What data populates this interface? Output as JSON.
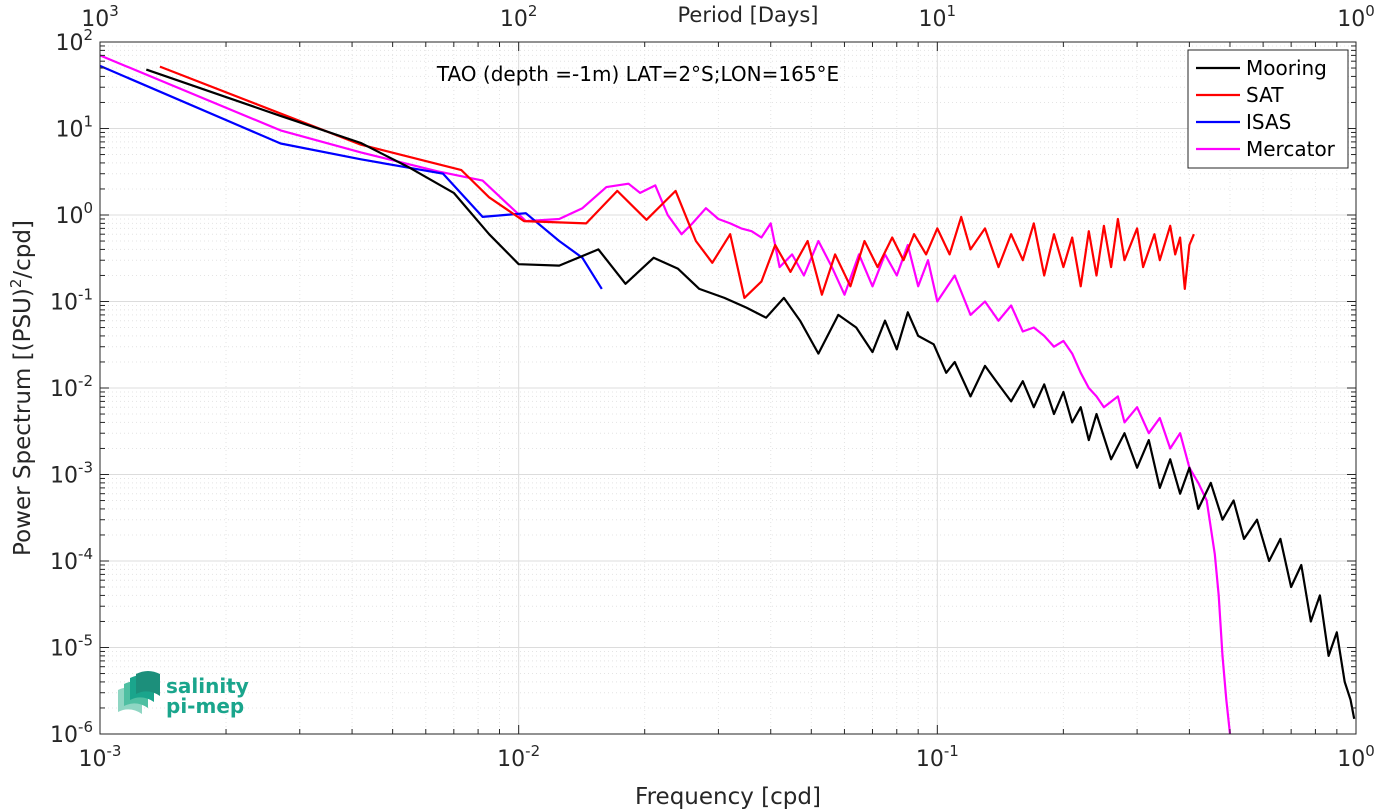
{
  "chart_data": {
    "type": "line",
    "title": "",
    "annotation": "TAO (depth =-1m) LAT=2°S;LON=165°E",
    "xlabel": "Frequency [cpd]",
    "ylabel": "Power Spectrum [(PSU)²/cpd]",
    "ylabel_parts": {
      "base": "Power Spectrum [(PSU)",
      "sup": "2",
      "rest": "/cpd]"
    },
    "top_xlabel": "Period [Days]",
    "xscale": "log",
    "yscale": "log",
    "xlim": [
      0.001,
      1
    ],
    "ylim": [
      1e-06,
      100
    ],
    "grid": true,
    "legend_position": "top-right",
    "x_ticks": [
      {
        "value": 0.001,
        "base": "10",
        "exp": "-3"
      },
      {
        "value": 0.01,
        "base": "10",
        "exp": "-2"
      },
      {
        "value": 0.1,
        "base": "10",
        "exp": "-1"
      },
      {
        "value": 1,
        "base": "10",
        "exp": "0"
      }
    ],
    "top_ticks": [
      {
        "freq": 0.001,
        "base": "10",
        "exp": "3"
      },
      {
        "freq": 0.01,
        "base": "10",
        "exp": "2"
      },
      {
        "freq": 0.1,
        "base": "10",
        "exp": "1"
      },
      {
        "freq": 1,
        "base": "10",
        "exp": "0"
      }
    ],
    "y_ticks": [
      {
        "value": 100,
        "base": "10",
        "exp": "2"
      },
      {
        "value": 10,
        "base": "10",
        "exp": "1"
      },
      {
        "value": 1,
        "base": "10",
        "exp": "0"
      },
      {
        "value": 0.1,
        "base": "10",
        "exp": "-1"
      },
      {
        "value": 0.01,
        "base": "10",
        "exp": "-2"
      },
      {
        "value": 0.001,
        "base": "10",
        "exp": "-3"
      },
      {
        "value": 0.0001,
        "base": "10",
        "exp": "-4"
      },
      {
        "value": 1e-05,
        "base": "10",
        "exp": "-5"
      },
      {
        "value": 1e-06,
        "base": "10",
        "exp": "-6"
      }
    ],
    "series": [
      {
        "name": "Mooring",
        "color": "#000000",
        "points": [
          [
            0.00129,
            48
          ],
          [
            0.0027,
            14
          ],
          [
            0.0042,
            6.8
          ],
          [
            0.0055,
            3.5
          ],
          [
            0.007,
            1.8
          ],
          [
            0.0085,
            0.6
          ],
          [
            0.01,
            0.27
          ],
          [
            0.0125,
            0.26
          ],
          [
            0.0155,
            0.4
          ],
          [
            0.018,
            0.16
          ],
          [
            0.021,
            0.32
          ],
          [
            0.024,
            0.24
          ],
          [
            0.027,
            0.14
          ],
          [
            0.031,
            0.11
          ],
          [
            0.035,
            0.085
          ],
          [
            0.039,
            0.065
          ],
          [
            0.043,
            0.11
          ],
          [
            0.047,
            0.06
          ],
          [
            0.052,
            0.025
          ],
          [
            0.058,
            0.07
          ],
          [
            0.064,
            0.05
          ],
          [
            0.07,
            0.026
          ],
          [
            0.075,
            0.06
          ],
          [
            0.08,
            0.028
          ],
          [
            0.085,
            0.075
          ],
          [
            0.09,
            0.04
          ],
          [
            0.098,
            0.032
          ],
          [
            0.105,
            0.015
          ],
          [
            0.11,
            0.02
          ],
          [
            0.12,
            0.008
          ],
          [
            0.13,
            0.018
          ],
          [
            0.14,
            0.011
          ],
          [
            0.15,
            0.007
          ],
          [
            0.16,
            0.012
          ],
          [
            0.17,
            0.006
          ],
          [
            0.18,
            0.011
          ],
          [
            0.19,
            0.005
          ],
          [
            0.2,
            0.009
          ],
          [
            0.21,
            0.004
          ],
          [
            0.22,
            0.006
          ],
          [
            0.23,
            0.0025
          ],
          [
            0.24,
            0.005
          ],
          [
            0.26,
            0.0015
          ],
          [
            0.28,
            0.003
          ],
          [
            0.3,
            0.0012
          ],
          [
            0.32,
            0.0025
          ],
          [
            0.34,
            0.0007
          ],
          [
            0.36,
            0.0015
          ],
          [
            0.38,
            0.0006
          ],
          [
            0.4,
            0.0012
          ],
          [
            0.42,
            0.0004
          ],
          [
            0.45,
            0.0008
          ],
          [
            0.48,
            0.0003
          ],
          [
            0.51,
            0.0005
          ],
          [
            0.54,
            0.00018
          ],
          [
            0.58,
            0.0003
          ],
          [
            0.62,
            0.0001
          ],
          [
            0.66,
            0.00018
          ],
          [
            0.7,
            5e-05
          ],
          [
            0.74,
            9e-05
          ],
          [
            0.78,
            2e-05
          ],
          [
            0.82,
            4e-05
          ],
          [
            0.86,
            8e-06
          ],
          [
            0.9,
            1.5e-05
          ],
          [
            0.94,
            4e-06
          ],
          [
            0.97,
            2.5e-06
          ],
          [
            0.99,
            1.5e-06
          ]
        ]
      },
      {
        "name": "SAT",
        "color": "#ff0000",
        "points": [
          [
            0.00139,
            52
          ],
          [
            0.0042,
            6.5
          ],
          [
            0.0073,
            3.3
          ],
          [
            0.0085,
            1.6
          ],
          [
            0.0103,
            0.85
          ],
          [
            0.0145,
            0.8
          ],
          [
            0.0172,
            1.9
          ],
          [
            0.0202,
            0.88
          ],
          [
            0.0237,
            1.9
          ],
          [
            0.0265,
            0.5
          ],
          [
            0.029,
            0.28
          ],
          [
            0.032,
            0.6
          ],
          [
            0.0346,
            0.11
          ],
          [
            0.038,
            0.17
          ],
          [
            0.041,
            0.45
          ],
          [
            0.0446,
            0.22
          ],
          [
            0.049,
            0.5
          ],
          [
            0.053,
            0.12
          ],
          [
            0.057,
            0.35
          ],
          [
            0.062,
            0.15
          ],
          [
            0.067,
            0.5
          ],
          [
            0.072,
            0.25
          ],
          [
            0.078,
            0.55
          ],
          [
            0.083,
            0.3
          ],
          [
            0.088,
            0.6
          ],
          [
            0.094,
            0.35
          ],
          [
            0.1,
            0.7
          ],
          [
            0.107,
            0.35
          ],
          [
            0.114,
            0.95
          ],
          [
            0.12,
            0.4
          ],
          [
            0.13,
            0.7
          ],
          [
            0.14,
            0.25
          ],
          [
            0.15,
            0.6
          ],
          [
            0.16,
            0.3
          ],
          [
            0.17,
            0.8
          ],
          [
            0.18,
            0.2
          ],
          [
            0.19,
            0.6
          ],
          [
            0.2,
            0.25
          ],
          [
            0.21,
            0.55
          ],
          [
            0.22,
            0.15
          ],
          [
            0.23,
            0.65
          ],
          [
            0.24,
            0.2
          ],
          [
            0.25,
            0.75
          ],
          [
            0.26,
            0.25
          ],
          [
            0.27,
            0.9
          ],
          [
            0.28,
            0.3
          ],
          [
            0.3,
            0.7
          ],
          [
            0.31,
            0.25
          ],
          [
            0.33,
            0.6
          ],
          [
            0.34,
            0.3
          ],
          [
            0.36,
            0.75
          ],
          [
            0.37,
            0.35
          ],
          [
            0.38,
            0.55
          ],
          [
            0.39,
            0.14
          ],
          [
            0.4,
            0.45
          ],
          [
            0.41,
            0.6
          ]
        ]
      },
      {
        "name": "ISAS",
        "color": "#0000ff",
        "points": [
          [
            0.001,
            53
          ],
          [
            0.0027,
            6.7
          ],
          [
            0.0042,
            4.4
          ],
          [
            0.0066,
            3.0
          ],
          [
            0.0082,
            0.95
          ],
          [
            0.0104,
            1.05
          ],
          [
            0.0125,
            0.5
          ],
          [
            0.0142,
            0.32
          ],
          [
            0.0158,
            0.14
          ]
        ]
      },
      {
        "name": "Mercator",
        "color": "#ff00ff",
        "points": [
          [
            0.001,
            70
          ],
          [
            0.0027,
            9.5
          ],
          [
            0.0042,
            5.3
          ],
          [
            0.0064,
            3.2
          ],
          [
            0.0082,
            2.5
          ],
          [
            0.0104,
            0.85
          ],
          [
            0.0125,
            0.9
          ],
          [
            0.0142,
            1.2
          ],
          [
            0.0162,
            2.1
          ],
          [
            0.0183,
            2.3
          ],
          [
            0.0195,
            1.8
          ],
          [
            0.0212,
            2.2
          ],
          [
            0.0227,
            1.0
          ],
          [
            0.0245,
            0.6
          ],
          [
            0.026,
            0.8
          ],
          [
            0.028,
            1.2
          ],
          [
            0.03,
            0.9
          ],
          [
            0.032,
            0.8
          ],
          [
            0.034,
            0.7
          ],
          [
            0.036,
            0.65
          ],
          [
            0.038,
            0.55
          ],
          [
            0.04,
            0.8
          ],
          [
            0.042,
            0.25
          ],
          [
            0.045,
            0.35
          ],
          [
            0.048,
            0.2
          ],
          [
            0.052,
            0.5
          ],
          [
            0.056,
            0.25
          ],
          [
            0.06,
            0.12
          ],
          [
            0.065,
            0.35
          ],
          [
            0.07,
            0.15
          ],
          [
            0.075,
            0.35
          ],
          [
            0.08,
            0.2
          ],
          [
            0.085,
            0.45
          ],
          [
            0.09,
            0.15
          ],
          [
            0.095,
            0.3
          ],
          [
            0.1,
            0.1
          ],
          [
            0.11,
            0.2
          ],
          [
            0.12,
            0.07
          ],
          [
            0.13,
            0.1
          ],
          [
            0.14,
            0.06
          ],
          [
            0.15,
            0.09
          ],
          [
            0.16,
            0.045
          ],
          [
            0.17,
            0.05
          ],
          [
            0.18,
            0.04
          ],
          [
            0.19,
            0.03
          ],
          [
            0.2,
            0.035
          ],
          [
            0.21,
            0.025
          ],
          [
            0.22,
            0.015
          ],
          [
            0.23,
            0.01
          ],
          [
            0.24,
            0.008
          ],
          [
            0.25,
            0.006
          ],
          [
            0.27,
            0.008
          ],
          [
            0.28,
            0.004
          ],
          [
            0.3,
            0.006
          ],
          [
            0.32,
            0.003
          ],
          [
            0.34,
            0.0045
          ],
          [
            0.36,
            0.002
          ],
          [
            0.38,
            0.003
          ],
          [
            0.4,
            0.0012
          ],
          [
            0.42,
            0.0008
          ],
          [
            0.44,
            0.0005
          ],
          [
            0.46,
            0.00012
          ],
          [
            0.47,
            4e-05
          ],
          [
            0.48,
            8e-06
          ],
          [
            0.49,
            2.5e-06
          ],
          [
            0.5,
            1e-06
          ]
        ]
      }
    ]
  },
  "logo": {
    "line1": "salinity",
    "line2": "pi-mep"
  }
}
